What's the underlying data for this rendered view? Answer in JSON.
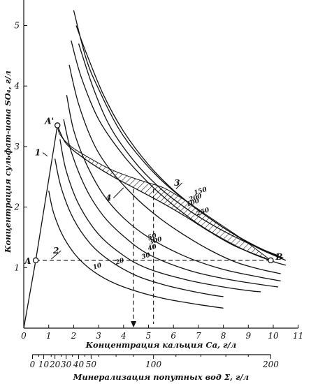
{
  "chart_data": {
    "type": "line",
    "title": "",
    "xlabel": "Концентрация кальция Ca, г/л",
    "ylabel": "Концентрация сульфат-иона SO₄, г/л",
    "xlim": [
      0,
      11
    ],
    "ylim": [
      0,
      5.5
    ],
    "x_ticks": [
      "0",
      "1",
      "2",
      "3",
      "4",
      "5",
      "6",
      "7",
      "8",
      "9",
      "10",
      "11"
    ],
    "y_ticks": [
      "1",
      "2",
      "3",
      "4",
      "5"
    ],
    "secondary_axis": {
      "label": "Минерализация попутных вод Σ, г/л",
      "ticks": [
        {
          "label": "0",
          "ca": 0.35
        },
        {
          "label": "10",
          "ca": 0.8
        },
        {
          "label": "20",
          "ca": 1.25
        },
        {
          "label": "30",
          "ca": 1.7
        },
        {
          "label": "40",
          "ca": 2.2
        },
        {
          "label": "50",
          "ca": 2.7
        },
        {
          "label": "100",
          "ca": 5.2
        },
        {
          "label": "200",
          "ca": 9.9
        }
      ],
      "minor": [
        0.6,
        1.1,
        1.5,
        1.95,
        2.45,
        3.0,
        3.7,
        4.4,
        6.1,
        7.1,
        8.1,
        9.0
      ]
    },
    "series": [
      {
        "name": "10",
        "values": [
          [
            1.0,
            2.27
          ],
          [
            1.2,
            1.9
          ],
          [
            1.6,
            1.5
          ],
          [
            2.2,
            1.15
          ],
          [
            3.0,
            0.88
          ],
          [
            4.0,
            0.68
          ],
          [
            5.5,
            0.5
          ],
          [
            7.0,
            0.39
          ],
          [
            8.0,
            0.33
          ]
        ]
      },
      {
        "name": "20",
        "values": [
          [
            1.25,
            2.8
          ],
          [
            1.5,
            2.32
          ],
          [
            2.0,
            1.8
          ],
          [
            2.7,
            1.38
          ],
          [
            3.5,
            1.1
          ],
          [
            4.5,
            0.87
          ],
          [
            5.5,
            0.73
          ],
          [
            6.5,
            0.63
          ],
          [
            7.5,
            0.55
          ],
          [
            8.0,
            0.52
          ]
        ]
      },
      {
        "name": "30",
        "values": [
          [
            1.45,
            3.12
          ],
          [
            1.7,
            2.6
          ],
          [
            2.2,
            2.05
          ],
          [
            3.0,
            1.55
          ],
          [
            4.0,
            1.2
          ],
          [
            5.0,
            0.98
          ],
          [
            6.5,
            0.8
          ],
          [
            8.0,
            0.68
          ],
          [
            9.0,
            0.62
          ],
          [
            9.5,
            0.6
          ]
        ]
      },
      {
        "name": "40",
        "values": [
          [
            1.6,
            3.45
          ],
          [
            1.9,
            2.92
          ],
          [
            2.5,
            2.3
          ],
          [
            3.2,
            1.85
          ],
          [
            4.0,
            1.52
          ],
          [
            5.0,
            1.22
          ],
          [
            6.5,
            0.97
          ],
          [
            8.0,
            0.82
          ],
          [
            9.5,
            0.72
          ],
          [
            10.2,
            0.68
          ]
        ]
      },
      {
        "name": "50",
        "values": [
          [
            1.72,
            3.85
          ],
          [
            2.0,
            3.27
          ],
          [
            2.5,
            2.72
          ],
          [
            3.2,
            2.2
          ],
          [
            4.0,
            1.82
          ],
          [
            5.0,
            1.5
          ],
          [
            6.5,
            1.18
          ],
          [
            8.0,
            0.97
          ],
          [
            9.5,
            0.84
          ],
          [
            10.3,
            0.78
          ]
        ]
      },
      {
        "name": "100",
        "values": [
          [
            1.82,
            4.35
          ],
          [
            2.2,
            3.7
          ],
          [
            2.8,
            3.05
          ],
          [
            3.5,
            2.6
          ],
          [
            4.5,
            2.15
          ],
          [
            5.5,
            1.8
          ],
          [
            6.5,
            1.52
          ],
          [
            7.5,
            1.28
          ],
          [
            8.5,
            1.09
          ],
          [
            9.5,
            0.97
          ],
          [
            10.3,
            0.9
          ]
        ]
      },
      {
        "name": "150",
        "values": [
          [
            1.9,
            4.75
          ],
          [
            2.3,
            4.15
          ],
          [
            3.0,
            3.45
          ],
          [
            4.0,
            2.85
          ],
          [
            5.0,
            2.4
          ],
          [
            6.0,
            2.03
          ],
          [
            7.0,
            1.72
          ],
          [
            8.0,
            1.47
          ],
          [
            9.0,
            1.26
          ],
          [
            10.0,
            1.1
          ],
          [
            10.5,
            1.04
          ]
        ]
      },
      {
        "name": "200",
        "values": [
          [
            2.0,
            5.25
          ],
          [
            2.5,
            4.45
          ],
          [
            3.0,
            3.95
          ],
          [
            3.8,
            3.3
          ],
          [
            4.6,
            2.85
          ],
          [
            5.5,
            2.45
          ],
          [
            6.5,
            2.1
          ],
          [
            7.5,
            1.8
          ],
          [
            8.5,
            1.53
          ],
          [
            9.5,
            1.3
          ],
          [
            10.5,
            1.12
          ]
        ]
      },
      {
        "name": "250",
        "values": [
          [
            2.1,
            5.0
          ],
          [
            2.5,
            4.55
          ],
          [
            3.2,
            3.85
          ],
          [
            4.0,
            3.25
          ],
          [
            5.0,
            2.7
          ],
          [
            6.0,
            2.28
          ],
          [
            7.0,
            1.95
          ],
          [
            8.0,
            1.66
          ],
          [
            9.0,
            1.42
          ],
          [
            10.0,
            1.22
          ],
          [
            10.4,
            1.16
          ]
        ]
      },
      {
        "name": "300",
        "values": [
          [
            2.2,
            4.7
          ],
          [
            2.8,
            3.95
          ],
          [
            3.5,
            3.3
          ],
          [
            4.5,
            2.72
          ],
          [
            5.5,
            2.3
          ],
          [
            6.5,
            1.98
          ],
          [
            7.5,
            1.72
          ],
          [
            8.5,
            1.5
          ],
          [
            9.5,
            1.31
          ],
          [
            10.2,
            1.2
          ]
        ]
      },
      {
        "name": "A–A′",
        "values": [
          [
            0.48,
            1.12
          ],
          [
            1.35,
            3.35
          ]
        ]
      },
      {
        "name": "A′–B",
        "values": [
          [
            1.35,
            3.35
          ],
          [
            1.7,
            3.05
          ],
          [
            2.5,
            2.78
          ],
          [
            3.5,
            2.52
          ],
          [
            4.5,
            2.3
          ],
          [
            5.5,
            2.08
          ],
          [
            6.5,
            1.84
          ],
          [
            7.5,
            1.58
          ],
          [
            8.5,
            1.35
          ],
          [
            9.9,
            1.12
          ]
        ]
      }
    ],
    "line_labels": [
      "1",
      "2",
      "3",
      "4"
    ],
    "points": [
      {
        "label": "A",
        "x": 0.48,
        "y": 1.12
      },
      {
        "label": "A'",
        "x": 1.35,
        "y": 3.35
      },
      {
        "label": "B",
        "x": 9.9,
        "y": 1.12
      }
    ],
    "projections": [
      {
        "x": 4.4,
        "y": 1.12
      },
      {
        "x": 5.2,
        "y": 1.12
      }
    ]
  }
}
